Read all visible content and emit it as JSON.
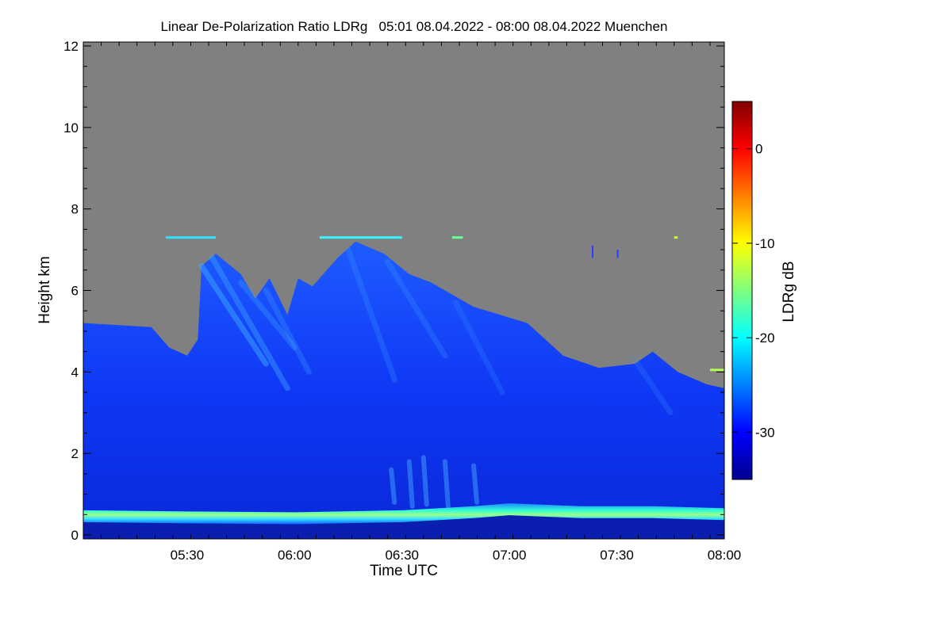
{
  "chart_data": {
    "type": "heatmap",
    "title": "Linear De-Polarization Ratio LDRg   05:01 08.04.2022 - 08:00 08.04.2022 Muenchen",
    "xlabel": "Time UTC",
    "ylabel": "Height km",
    "xlim": [
      "05:01",
      "08:00"
    ],
    "ylim": [
      0,
      12
    ],
    "x_ticks": [
      "05:30",
      "06:00",
      "06:30",
      "07:00",
      "07:30",
      "08:00"
    ],
    "y_ticks": [
      "0",
      "2",
      "4",
      "6",
      "8",
      "10",
      "12"
    ],
    "colorbar": {
      "label": "LDRg dB",
      "range": [
        -35,
        5
      ],
      "ticks": [
        "0",
        "-10",
        "-20",
        "-30"
      ],
      "colormap": "jet"
    },
    "no_data_color": "#808080",
    "cloud_top_km": [
      {
        "t": "05:01",
        "h": 5.2
      },
      {
        "t": "05:20",
        "h": 5.1
      },
      {
        "t": "05:25",
        "h": 4.6
      },
      {
        "t": "05:30",
        "h": 4.4
      },
      {
        "t": "05:33",
        "h": 4.8
      },
      {
        "t": "05:34",
        "h": 6.6
      },
      {
        "t": "05:38",
        "h": 6.9
      },
      {
        "t": "05:45",
        "h": 6.4
      },
      {
        "t": "05:49",
        "h": 5.8
      },
      {
        "t": "05:53",
        "h": 6.3
      },
      {
        "t": "05:58",
        "h": 5.4
      },
      {
        "t": "06:01",
        "h": 6.3
      },
      {
        "t": "06:05",
        "h": 6.1
      },
      {
        "t": "06:12",
        "h": 6.8
      },
      {
        "t": "06:17",
        "h": 7.2
      },
      {
        "t": "06:25",
        "h": 6.9
      },
      {
        "t": "06:32",
        "h": 6.4
      },
      {
        "t": "06:38",
        "h": 6.2
      },
      {
        "t": "06:50",
        "h": 5.6
      },
      {
        "t": "07:05",
        "h": 5.2
      },
      {
        "t": "07:15",
        "h": 4.4
      },
      {
        "t": "07:25",
        "h": 4.1
      },
      {
        "t": "07:35",
        "h": 4.2
      },
      {
        "t": "07:40",
        "h": 4.5
      },
      {
        "t": "07:47",
        "h": 4.0
      },
      {
        "t": "07:55",
        "h": 3.7
      },
      {
        "t": "08:00",
        "h": 3.6
      }
    ],
    "boundary_layer_km": [
      {
        "t": "05:01",
        "h": 0.45
      },
      {
        "t": "05:30",
        "h": 0.42
      },
      {
        "t": "06:00",
        "h": 0.4
      },
      {
        "t": "06:30",
        "h": 0.45
      },
      {
        "t": "06:50",
        "h": 0.55
      },
      {
        "t": "07:00",
        "h": 0.62
      },
      {
        "t": "07:20",
        "h": 0.55
      },
      {
        "t": "07:40",
        "h": 0.55
      },
      {
        "t": "08:00",
        "h": 0.5
      }
    ],
    "thin_layer_km": 7.3
  }
}
